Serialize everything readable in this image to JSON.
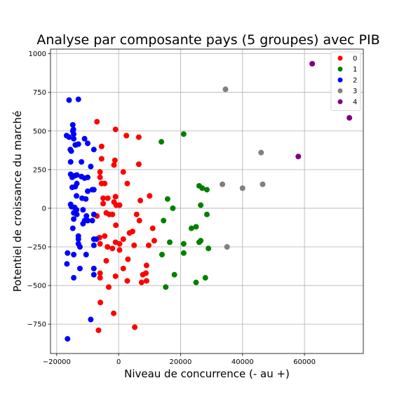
{
  "chart_data": {
    "type": "scatter",
    "title": "Analyse par composante pays (5 groupes) avec PIB",
    "xlabel": "Niveau de concurrence (- au +)",
    "ylabel": "Potentiel de croissance du marché",
    "xlim": [
      -22000,
      79000
    ],
    "ylim": [
      -940,
      1030
    ],
    "xticks": [
      -20000,
      0,
      20000,
      40000,
      60000
    ],
    "xtick_labels": [
      "−20000",
      "0",
      "20000",
      "40000",
      "60000"
    ],
    "yticks": [
      -750,
      -500,
      -250,
      0,
      250,
      500,
      750,
      1000
    ],
    "ytick_labels": [
      "−750",
      "−500",
      "−250",
      "0",
      "250",
      "500",
      "750",
      "1000"
    ],
    "grid": true,
    "legend_position": "top-right",
    "series": [
      {
        "name": "0",
        "color": "#ff0000",
        "points": [
          [
            -7000,
            560
          ],
          [
            -1000,
            510
          ],
          [
            2500,
            470
          ],
          [
            6500,
            460
          ],
          [
            -5500,
            400
          ],
          [
            -1500,
            280
          ],
          [
            6500,
            285
          ],
          [
            1500,
            235
          ],
          [
            -6000,
            235
          ],
          [
            -6000,
            200
          ],
          [
            -5500,
            160
          ],
          [
            -4500,
            160
          ],
          [
            2800,
            160
          ],
          [
            -5000,
            65
          ],
          [
            -3500,
            65
          ],
          [
            -1000,
            75
          ],
          [
            10000,
            80
          ],
          [
            7000,
            50
          ],
          [
            -1500,
            40
          ],
          [
            -5000,
            30
          ],
          [
            -800,
            20
          ],
          [
            300,
            20
          ],
          [
            -4000,
            -30
          ],
          [
            -3000,
            -40
          ],
          [
            -2000,
            -40
          ],
          [
            5800,
            -40
          ],
          [
            -7000,
            -50
          ],
          [
            6700,
            -80
          ],
          [
            -900,
            -110
          ],
          [
            11000,
            -130
          ],
          [
            4500,
            -150
          ],
          [
            3500,
            -160
          ],
          [
            -4500,
            -180
          ],
          [
            -6200,
            -190
          ],
          [
            1500,
            -200
          ],
          [
            11500,
            -210
          ],
          [
            -1000,
            -220
          ],
          [
            -6000,
            -230
          ],
          [
            300,
            -230
          ],
          [
            9700,
            -240
          ],
          [
            5000,
            -240
          ],
          [
            -3600,
            -250
          ],
          [
            -2000,
            -260
          ],
          [
            300,
            -270
          ],
          [
            3000,
            -330
          ],
          [
            -4000,
            -340
          ],
          [
            9000,
            -370
          ],
          [
            1500,
            -390
          ],
          [
            -6000,
            -420
          ],
          [
            8800,
            -420
          ],
          [
            7800,
            -430
          ],
          [
            -6000,
            -450
          ],
          [
            -1000,
            -440
          ],
          [
            2800,
            -470
          ],
          [
            7400,
            -480
          ],
          [
            9000,
            -470
          ],
          [
            -3200,
            -510
          ],
          [
            -5900,
            -610
          ],
          [
            -1600,
            -680
          ],
          [
            -6500,
            -790
          ],
          [
            5200,
            -770
          ],
          [
            -1200,
            310
          ],
          [
            -5500,
            320
          ]
        ]
      },
      {
        "name": "1",
        "color": "#008000",
        "points": [
          [
            21000,
            480
          ],
          [
            13800,
            430
          ],
          [
            26000,
            145
          ],
          [
            27000,
            130
          ],
          [
            28500,
            120
          ],
          [
            15800,
            60
          ],
          [
            26500,
            20
          ],
          [
            17500,
            0
          ],
          [
            28500,
            -40
          ],
          [
            14500,
            -80
          ],
          [
            25000,
            -120
          ],
          [
            23500,
            -130
          ],
          [
            26500,
            -210
          ],
          [
            16500,
            -220
          ],
          [
            26000,
            -220
          ],
          [
            21000,
            -230
          ],
          [
            29000,
            -260
          ],
          [
            14000,
            -300
          ],
          [
            21000,
            -290
          ],
          [
            18000,
            -430
          ],
          [
            28000,
            -450
          ],
          [
            25000,
            -480
          ],
          [
            15200,
            -510
          ]
        ]
      },
      {
        "name": "2",
        "color": "#0000ff",
        "points": [
          [
            -16000,
            700
          ],
          [
            -13000,
            705
          ],
          [
            -14800,
            540
          ],
          [
            -14600,
            510
          ],
          [
            -14500,
            480
          ],
          [
            -16800,
            470
          ],
          [
            -16000,
            460
          ],
          [
            -14500,
            450
          ],
          [
            -11000,
            450
          ],
          [
            -10000,
            420
          ],
          [
            -14000,
            410
          ],
          [
            -13000,
            415
          ],
          [
            -8000,
            380
          ],
          [
            -15600,
            380
          ],
          [
            -15300,
            370
          ],
          [
            -12000,
            300
          ],
          [
            -15500,
            300
          ],
          [
            -9000,
            270
          ],
          [
            -15500,
            220
          ],
          [
            -14200,
            210
          ],
          [
            -13500,
            215
          ],
          [
            -12000,
            205
          ],
          [
            -10000,
            200
          ],
          [
            -15000,
            200
          ],
          [
            -11000,
            195
          ],
          [
            -13500,
            160
          ],
          [
            -15000,
            135
          ],
          [
            -14000,
            140
          ],
          [
            -8500,
            120
          ],
          [
            -8000,
            120
          ],
          [
            -10000,
            110
          ],
          [
            -13600,
            80
          ],
          [
            -11800,
            65
          ],
          [
            -10600,
            60
          ],
          [
            -15500,
            25
          ],
          [
            -15200,
            10
          ],
          [
            -14200,
            5
          ],
          [
            -13600,
            -10
          ],
          [
            -11500,
            -10
          ],
          [
            -14500,
            -30
          ],
          [
            -13500,
            -40
          ],
          [
            -8000,
            -40
          ],
          [
            -10400,
            -50
          ],
          [
            -14500,
            -70
          ],
          [
            -11000,
            -80
          ],
          [
            -10000,
            -80
          ],
          [
            -8500,
            -80
          ],
          [
            -11500,
            -100
          ],
          [
            -14800,
            -130
          ],
          [
            -13000,
            -180
          ],
          [
            -13000,
            -200
          ],
          [
            -8000,
            -200
          ],
          [
            -13000,
            -230
          ],
          [
            -8000,
            -240
          ],
          [
            -12500,
            -250
          ],
          [
            -16500,
            -290
          ],
          [
            -14500,
            -300
          ],
          [
            -10500,
            -300
          ],
          [
            -16700,
            -360
          ],
          [
            -12500,
            -390
          ],
          [
            -8000,
            -390
          ],
          [
            -8000,
            -430
          ],
          [
            -14500,
            -450
          ],
          [
            -9000,
            -720
          ],
          [
            -16500,
            -845
          ],
          [
            -14800,
            500
          ],
          [
            -7200,
            -200
          ],
          [
            -13800,
            410
          ]
        ]
      },
      {
        "name": "3",
        "color": "#808080",
        "points": [
          [
            34500,
            770
          ],
          [
            46000,
            360
          ],
          [
            33500,
            155
          ],
          [
            46500,
            155
          ],
          [
            40000,
            130
          ],
          [
            35000,
            -250
          ]
        ]
      },
      {
        "name": "4",
        "color": "#800080",
        "points": [
          [
            62500,
            935
          ],
          [
            74500,
            585
          ],
          [
            58000,
            335
          ]
        ]
      }
    ]
  }
}
